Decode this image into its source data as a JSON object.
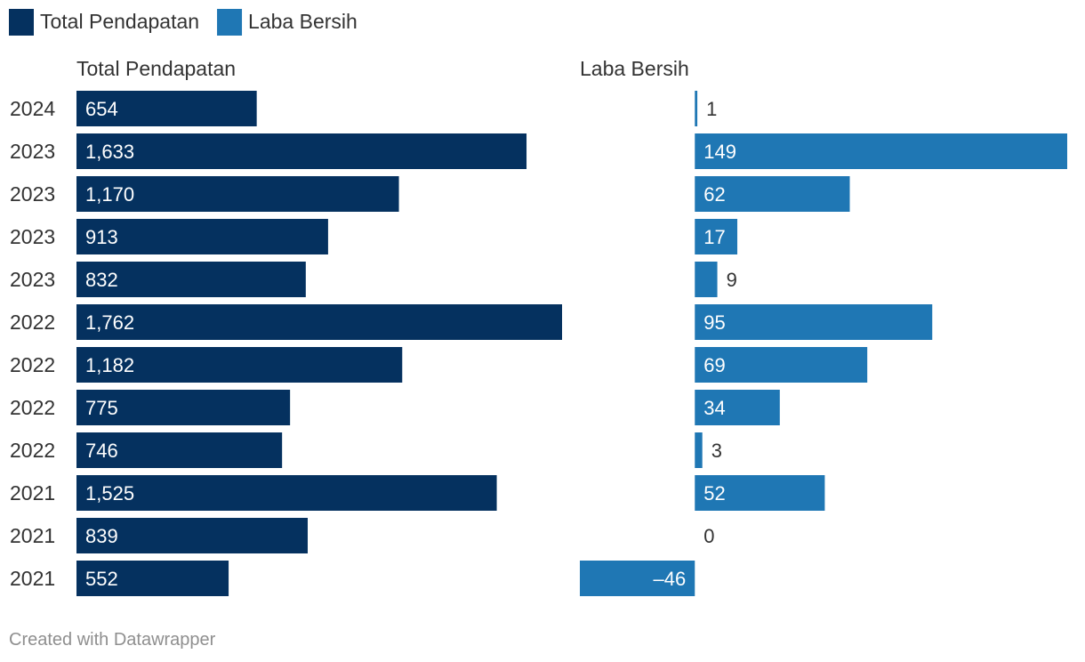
{
  "legend": [
    {
      "label": "Total Pendapatan",
      "color": "#05315f"
    },
    {
      "label": "Laba Bersih",
      "color": "#1f77b4"
    }
  ],
  "footer": "Created with Datawrapper",
  "chart_data": {
    "type": "bar",
    "orientation": "horizontal",
    "layout": "split-panels",
    "categories": [
      "2024",
      "2023",
      "2023",
      "2023",
      "2023",
      "2022",
      "2022",
      "2022",
      "2022",
      "2021",
      "2021",
      "2021"
    ],
    "series": [
      {
        "name": "Total Pendapatan",
        "color": "#05315f",
        "values": [
          654,
          1633,
          1170,
          913,
          832,
          1762,
          1182,
          775,
          746,
          1525,
          839,
          552
        ],
        "labels": [
          "654",
          "1,633",
          "1,170",
          "913",
          "832",
          "1,762",
          "1,182",
          "775",
          "746",
          "1,525",
          "839",
          "552"
        ],
        "xlim": [
          0,
          1762
        ]
      },
      {
        "name": "Laba Bersih",
        "color": "#1f77b4",
        "values": [
          1,
          149,
          62,
          17,
          9,
          95,
          69,
          34,
          3,
          52,
          0,
          -46
        ],
        "labels": [
          "1",
          "149",
          "62",
          "17",
          "9",
          "95",
          "69",
          "34",
          "3",
          "52",
          "0",
          "–46"
        ],
        "xlim": [
          -46,
          149
        ]
      }
    ],
    "grid": false,
    "legend_position": "top-left"
  }
}
